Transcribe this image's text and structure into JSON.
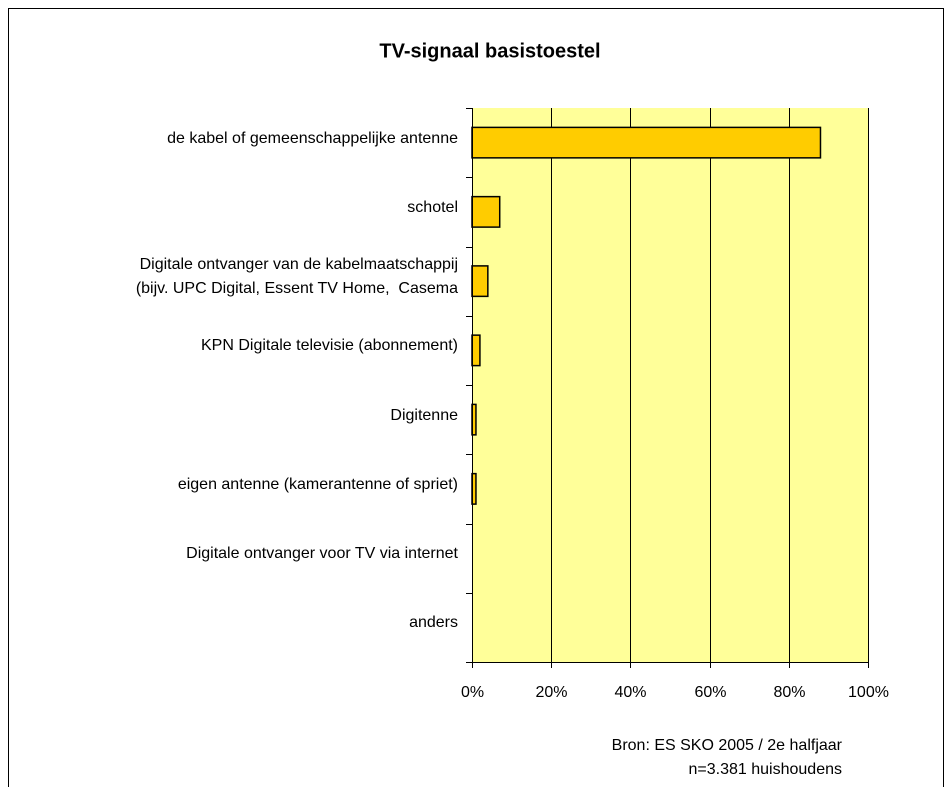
{
  "chart_data": {
    "type": "bar",
    "orientation": "horizontal",
    "title": "TV-signaal basistoestel",
    "categories": [
      "de kabel of gemeenschappelijke antenne",
      "schotel",
      "Digitale ontvanger van de kabelmaatschappij\n(bijv. UPC Digital, Essent TV Home,  Casema",
      "KPN Digitale televisie (abonnement)",
      "Digitenne",
      "eigen antenne (kamerantenne of spriet)",
      "Digitale ontvanger voor TV via internet",
      "anders"
    ],
    "values": [
      88,
      7,
      4,
      2,
      1,
      1,
      0,
      0
    ],
    "color": "#ffcc00",
    "plot_background": "#ffff99",
    "xlim": [
      0,
      100
    ],
    "xticks": [
      {
        "value": 0,
        "label": "0%"
      },
      {
        "value": 20,
        "label": "20%"
      },
      {
        "value": 40,
        "label": "40%"
      },
      {
        "value": 60,
        "label": "60%"
      },
      {
        "value": 80,
        "label": "80%"
      },
      {
        "value": 100,
        "label": "100%"
      }
    ],
    "grid": true,
    "source": [
      "Bron: ES SKO 2005 / 2e halfjaar",
      "n=3.381 huishoudens"
    ]
  }
}
